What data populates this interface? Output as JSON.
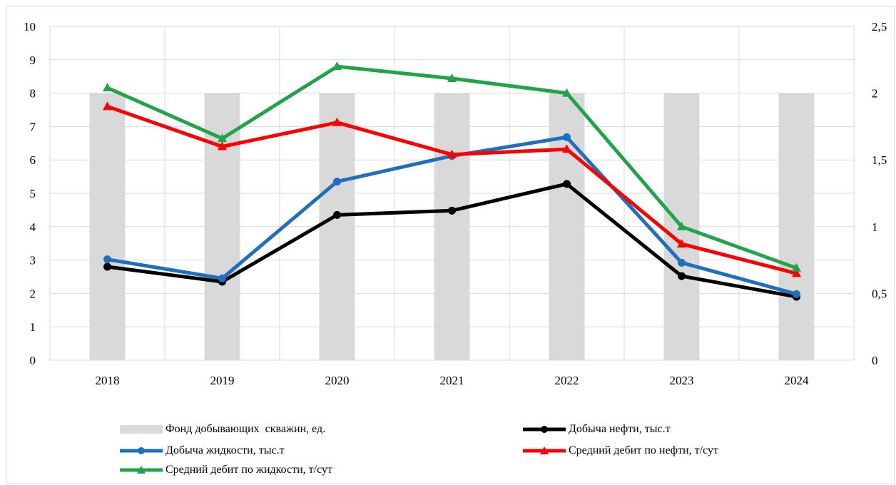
{
  "chart_data": {
    "type": "bar+line",
    "categories": [
      "2018",
      "2019",
      "2020",
      "2021",
      "2022",
      "2023",
      "2024"
    ],
    "y_left": {
      "ylim": [
        0,
        10
      ],
      "ticks": [
        "0",
        "1",
        "2",
        "3",
        "4",
        "5",
        "6",
        "7",
        "8",
        "9",
        "10"
      ]
    },
    "y_right": {
      "ylim": [
        0,
        2.5
      ],
      "ticks": [
        "0",
        "0,5",
        "1",
        "1,5",
        "2",
        "2,5"
      ]
    },
    "grid": true,
    "legend_position": "bottom",
    "series": [
      {
        "name": "Фонд добывающих  скважин, ед.",
        "type": "bar",
        "axis": "left",
        "color": "#d9d9d9",
        "values": [
          8,
          8,
          8,
          8,
          8,
          8,
          8
        ]
      },
      {
        "name": "Добыча нефти, тыс.т",
        "type": "line",
        "axis": "left",
        "color": "#000000",
        "marker": "circle",
        "values": [
          2.8,
          2.35,
          4.35,
          4.48,
          5.28,
          2.52,
          1.9
        ]
      },
      {
        "name": "Добыча жидкости, тыс.т",
        "type": "line",
        "axis": "left",
        "color": "#1f6fbf",
        "marker": "circle",
        "values": [
          3.02,
          2.45,
          5.35,
          6.12,
          6.68,
          2.92,
          1.98
        ]
      },
      {
        "name": "Средний дебит по нефти, т/сут",
        "type": "line",
        "axis": "right",
        "color": "#ff0000",
        "marker": "triangle",
        "values": [
          1.9,
          1.6,
          1.78,
          1.54,
          1.58,
          0.87,
          0.65
        ]
      },
      {
        "name": "Средний дебит по жидкости, т/сут",
        "type": "line",
        "axis": "right",
        "color": "#1fa44a",
        "marker": "triangle",
        "values": [
          2.04,
          1.66,
          2.2,
          2.11,
          2.0,
          1.0,
          0.69
        ]
      }
    ]
  }
}
